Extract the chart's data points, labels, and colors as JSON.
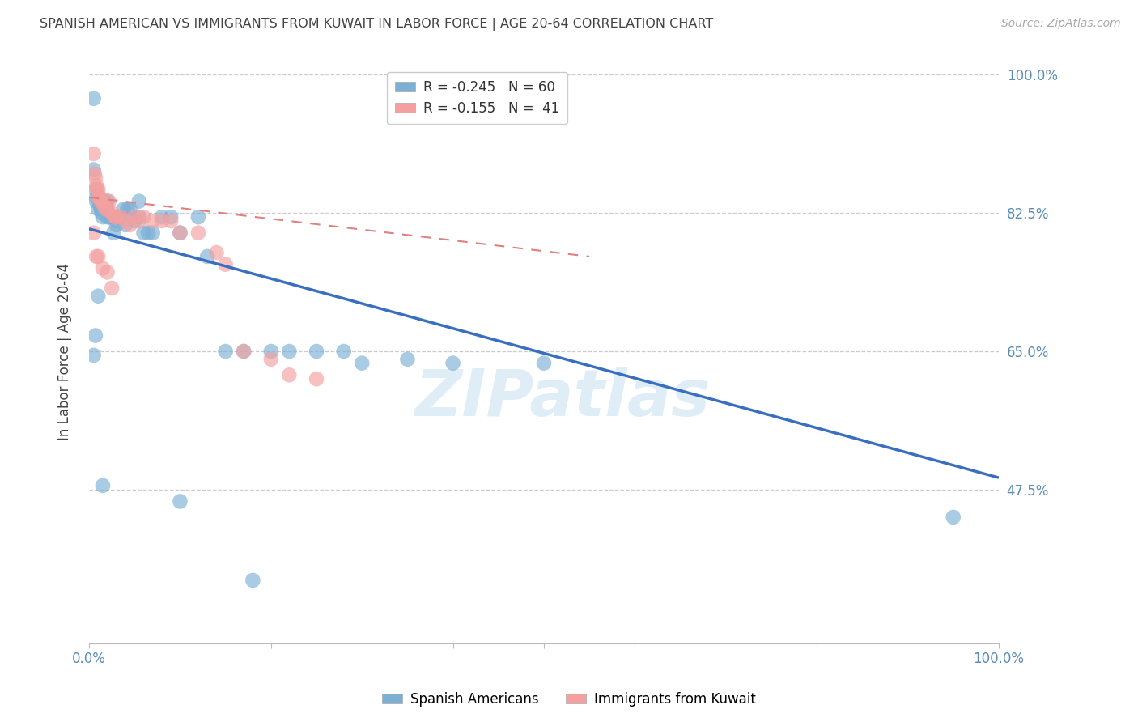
{
  "title": "SPANISH AMERICAN VS IMMIGRANTS FROM KUWAIT IN LABOR FORCE | AGE 20-64 CORRELATION CHART",
  "source": "Source: ZipAtlas.com",
  "ylabel": "In Labor Force | Age 20-64",
  "xlim": [
    0.0,
    1.0
  ],
  "ylim": [
    0.28,
    1.02
  ],
  "legend": {
    "blue_label": "R = -0.245   N = 60",
    "pink_label": "R = -0.155   N =  41"
  },
  "blue_color": "#7BAFD4",
  "pink_color": "#F4A0A0",
  "blue_line_color": "#3A6FBF",
  "pink_line_color": "#E08080",
  "watermark": "ZIPatlas",
  "blue_scatter_x": [
    0.005,
    0.005,
    0.007,
    0.008,
    0.008,
    0.01,
    0.01,
    0.012,
    0.012,
    0.013,
    0.013,
    0.014,
    0.015,
    0.015,
    0.016,
    0.017,
    0.018,
    0.019,
    0.02,
    0.02,
    0.022,
    0.025,
    0.025,
    0.027,
    0.03,
    0.03,
    0.032,
    0.035,
    0.038,
    0.04,
    0.042,
    0.045,
    0.05,
    0.055,
    0.055,
    0.06,
    0.065,
    0.07,
    0.08,
    0.09,
    0.1,
    0.12,
    0.13,
    0.15,
    0.17,
    0.2,
    0.22,
    0.25,
    0.28,
    0.3,
    0.35,
    0.4,
    0.5,
    0.95,
    0.005,
    0.007,
    0.01,
    0.015,
    0.1,
    0.18
  ],
  "blue_scatter_y": [
    0.97,
    0.88,
    0.855,
    0.845,
    0.84,
    0.845,
    0.83,
    0.84,
    0.835,
    0.84,
    0.83,
    0.825,
    0.83,
    0.82,
    0.84,
    0.83,
    0.835,
    0.83,
    0.82,
    0.84,
    0.82,
    0.82,
    0.82,
    0.8,
    0.81,
    0.815,
    0.82,
    0.82,
    0.83,
    0.81,
    0.83,
    0.83,
    0.815,
    0.82,
    0.84,
    0.8,
    0.8,
    0.8,
    0.82,
    0.82,
    0.8,
    0.82,
    0.77,
    0.65,
    0.65,
    0.65,
    0.65,
    0.65,
    0.65,
    0.635,
    0.64,
    0.635,
    0.635,
    0.44,
    0.645,
    0.67,
    0.72,
    0.48,
    0.46,
    0.36
  ],
  "pink_scatter_x": [
    0.005,
    0.006,
    0.007,
    0.008,
    0.009,
    0.01,
    0.01,
    0.012,
    0.013,
    0.014,
    0.015,
    0.016,
    0.018,
    0.02,
    0.022,
    0.025,
    0.028,
    0.03,
    0.035,
    0.04,
    0.045,
    0.05,
    0.055,
    0.06,
    0.07,
    0.08,
    0.09,
    0.1,
    0.12,
    0.14,
    0.15,
    0.17,
    0.2,
    0.22,
    0.25,
    0.005,
    0.008,
    0.01,
    0.015,
    0.02,
    0.025
  ],
  "pink_scatter_y": [
    0.9,
    0.875,
    0.87,
    0.86,
    0.855,
    0.855,
    0.845,
    0.845,
    0.84,
    0.84,
    0.84,
    0.835,
    0.83,
    0.83,
    0.84,
    0.825,
    0.82,
    0.82,
    0.82,
    0.815,
    0.81,
    0.82,
    0.815,
    0.82,
    0.815,
    0.815,
    0.815,
    0.8,
    0.8,
    0.775,
    0.76,
    0.65,
    0.64,
    0.62,
    0.615,
    0.8,
    0.77,
    0.77,
    0.755,
    0.75,
    0.73
  ],
  "blue_line_x0": 0.0,
  "blue_line_x1": 1.0,
  "blue_line_y0": 0.805,
  "blue_line_y1": 0.49,
  "pink_line_x0": 0.0,
  "pink_line_x1": 0.55,
  "pink_line_y0": 0.845,
  "pink_line_y1": 0.77,
  "background_color": "#FFFFFF",
  "grid_color": "#CCCCCC",
  "title_color": "#444444",
  "axis_label_color": "#444444",
  "right_axis_color": "#5B8DB8",
  "bottom_axis_color": "#5B8DB8",
  "ytick_values": [
    0.475,
    0.65,
    0.825,
    1.0
  ],
  "ytick_labels": [
    "47.5%",
    "65.0%",
    "82.5%",
    "100.0%"
  ]
}
